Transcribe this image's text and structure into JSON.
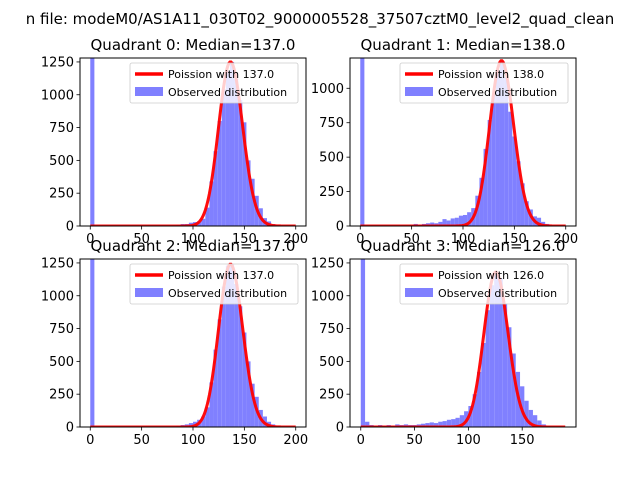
{
  "figure": {
    "suptitle": "n file: modeM0/AS1A11_030T02_9000005528_37507cztM0_level2_quad_clean"
  },
  "colors": {
    "observed": "#8080ff",
    "poisson": "#ff0000",
    "axes": "#000000",
    "background": "#ffffff"
  },
  "chart_data": [
    {
      "type": "bar",
      "title": "Quadrant 0: Median=137.0",
      "legend_loc": "upper right",
      "xlim": [
        -10,
        210
      ],
      "ylim": [
        0,
        1280
      ],
      "xticks": [
        0,
        50,
        100,
        150,
        200
      ],
      "yticks": [
        0,
        250,
        500,
        750,
        1000,
        1250
      ],
      "bin_width": 4,
      "hist_bins": [
        0,
        4,
        8,
        12,
        16,
        20,
        24,
        28,
        32,
        36,
        40,
        44,
        48,
        52,
        56,
        60,
        64,
        68,
        72,
        76,
        80,
        84,
        88,
        92,
        96,
        100,
        104,
        108,
        112,
        116,
        120,
        124,
        128,
        132,
        136,
        140,
        144,
        148,
        152,
        156,
        160,
        164,
        168,
        172,
        176,
        180,
        184,
        188,
        192,
        196
      ],
      "hist_values": [
        1280,
        0,
        0,
        0,
        0,
        0,
        0,
        0,
        0,
        0,
        0,
        0,
        0,
        0,
        0,
        0,
        0,
        0,
        0,
        0,
        5,
        10,
        15,
        15,
        25,
        30,
        35,
        55,
        140,
        340,
        570,
        800,
        1040,
        1180,
        1250,
        1120,
        960,
        790,
        500,
        360,
        230,
        135,
        60,
        35,
        15,
        8,
        5,
        0,
        0,
        0
      ],
      "poisson_mean": 137.0,
      "poisson_scale": 4,
      "poisson_range": [
        0,
        200
      ],
      "series": [
        {
          "name": "Poission with 137.0",
          "kind": "line"
        },
        {
          "name": "Observed distribution",
          "kind": "hist"
        }
      ]
    },
    {
      "type": "bar",
      "title": "Quadrant 1: Median=138.0",
      "legend_loc": "upper right",
      "xlim": [
        -10,
        210
      ],
      "ylim": [
        0,
        1220
      ],
      "xticks": [
        0,
        50,
        100,
        150,
        200
      ],
      "yticks": [
        0,
        250,
        500,
        750,
        1000
      ],
      "bin_width": 4,
      "hist_bins": [
        0,
        4,
        8,
        12,
        16,
        20,
        24,
        28,
        32,
        36,
        40,
        44,
        48,
        52,
        56,
        60,
        64,
        68,
        72,
        76,
        80,
        84,
        88,
        92,
        96,
        100,
        104,
        108,
        112,
        116,
        120,
        124,
        128,
        132,
        136,
        140,
        144,
        148,
        152,
        156,
        160,
        164,
        168,
        172,
        176,
        180,
        184,
        188,
        192,
        196
      ],
      "hist_values": [
        1220,
        0,
        0,
        0,
        0,
        0,
        0,
        0,
        0,
        0,
        0,
        0,
        10,
        15,
        10,
        15,
        20,
        25,
        20,
        30,
        50,
        40,
        55,
        60,
        75,
        80,
        100,
        130,
        220,
        350,
        560,
        770,
        950,
        1130,
        1200,
        1080,
        830,
        650,
        470,
        310,
        180,
        120,
        70,
        60,
        30,
        15,
        5,
        0,
        0,
        0
      ],
      "poisson_mean": 138.0,
      "poisson_scale": 4,
      "poisson_range": [
        0,
        200
      ],
      "series": [
        {
          "name": "Poission with 138.0",
          "kind": "line"
        },
        {
          "name": "Observed distribution",
          "kind": "hist"
        }
      ]
    },
    {
      "type": "bar",
      "title": "Quadrant 2: Median=137.0",
      "legend_loc": "upper right",
      "xlim": [
        -10,
        210
      ],
      "ylim": [
        0,
        1280
      ],
      "xticks": [
        0,
        50,
        100,
        150,
        200
      ],
      "yticks": [
        0,
        250,
        500,
        750,
        1000,
        1250
      ],
      "bin_width": 4,
      "hist_bins": [
        0,
        4,
        8,
        12,
        16,
        20,
        24,
        28,
        32,
        36,
        40,
        44,
        48,
        52,
        56,
        60,
        64,
        68,
        72,
        76,
        80,
        84,
        88,
        92,
        96,
        100,
        104,
        108,
        112,
        116,
        120,
        124,
        128,
        132,
        136,
        140,
        144,
        148,
        152,
        156,
        160,
        164,
        168,
        172,
        176,
        180,
        184,
        188,
        192,
        196
      ],
      "hist_values": [
        1280,
        0,
        0,
        0,
        0,
        0,
        0,
        0,
        0,
        0,
        0,
        0,
        0,
        0,
        0,
        0,
        0,
        0,
        0,
        0,
        5,
        10,
        15,
        20,
        30,
        40,
        55,
        80,
        150,
        340,
        590,
        820,
        1070,
        1230,
        1240,
        1090,
        920,
        720,
        500,
        330,
        230,
        130,
        80,
        40,
        20,
        10,
        5,
        0,
        0,
        0
      ],
      "poisson_mean": 137.0,
      "poisson_scale": 4,
      "poisson_range": [
        0,
        200
      ],
      "series": [
        {
          "name": "Poission with 137.0",
          "kind": "line"
        },
        {
          "name": "Observed distribution",
          "kind": "hist"
        }
      ]
    },
    {
      "type": "bar",
      "title": "Quadrant 3: Median=126.0",
      "legend_loc": "upper right",
      "xlim": [
        -10,
        200
      ],
      "ylim": [
        0,
        1280
      ],
      "xticks": [
        0,
        50,
        100,
        150
      ],
      "yticks": [
        0,
        250,
        500,
        750,
        1000,
        1250
      ],
      "bin_width": 4,
      "hist_bins": [
        0,
        4,
        8,
        12,
        16,
        20,
        24,
        28,
        32,
        36,
        40,
        44,
        48,
        52,
        56,
        60,
        64,
        68,
        72,
        76,
        80,
        84,
        88,
        92,
        96,
        100,
        104,
        108,
        112,
        116,
        120,
        124,
        128,
        132,
        136,
        140,
        144,
        148,
        152,
        156,
        160,
        164,
        168,
        172,
        176,
        180,
        184
      ],
      "hist_values": [
        1280,
        40,
        15,
        10,
        15,
        10,
        15,
        10,
        20,
        15,
        20,
        15,
        15,
        20,
        25,
        30,
        35,
        30,
        40,
        45,
        55,
        60,
        70,
        90,
        120,
        160,
        250,
        420,
        640,
        890,
        1080,
        1180,
        1130,
        940,
        760,
        560,
        420,
        310,
        200,
        130,
        90,
        50,
        20,
        10,
        5,
        0,
        0
      ],
      "poisson_mean": 126.0,
      "poisson_scale": 4,
      "poisson_range": [
        0,
        190
      ],
      "series": [
        {
          "name": "Poission with 126.0",
          "kind": "line"
        },
        {
          "name": "Observed distribution",
          "kind": "hist"
        }
      ]
    }
  ]
}
